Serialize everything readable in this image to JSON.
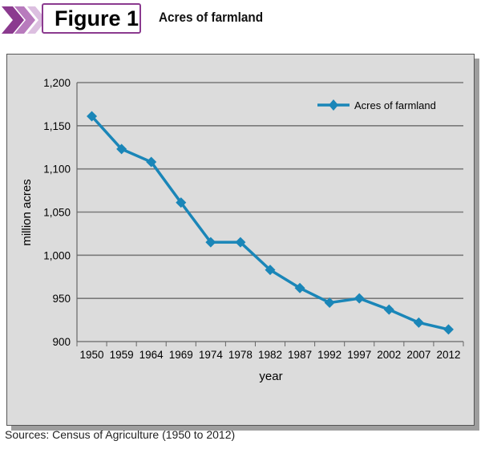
{
  "header": {
    "figure_label": "Figure 1",
    "figure_title": "Acres of farmland",
    "accent_color": "#8b3a8f"
  },
  "source_note": "Sources: Census of Agriculture (1950 to 2012)",
  "chart_data": {
    "type": "line",
    "categories": [
      "1950",
      "1959",
      "1964",
      "1969",
      "1974",
      "1978",
      "1982",
      "1987",
      "1992",
      "1997",
      "2002",
      "2007",
      "2012"
    ],
    "series": [
      {
        "name": "Acres of farmland",
        "values": [
          1161,
          1123,
          1108,
          1061,
          1015,
          1015,
          983,
          962,
          945,
          950,
          937,
          922,
          914
        ],
        "color": "#1a86b8"
      }
    ],
    "xlabel": "year",
    "ylabel": "million acres",
    "ylim": [
      900,
      1200
    ],
    "yticks": [
      900,
      950,
      1000,
      1050,
      1100,
      1150,
      1200
    ],
    "ytick_labels": [
      "900",
      "950",
      "1,000",
      "1,050",
      "1,100",
      "1,150",
      "1,200"
    ],
    "grid": true,
    "legend_position": "top-right"
  }
}
